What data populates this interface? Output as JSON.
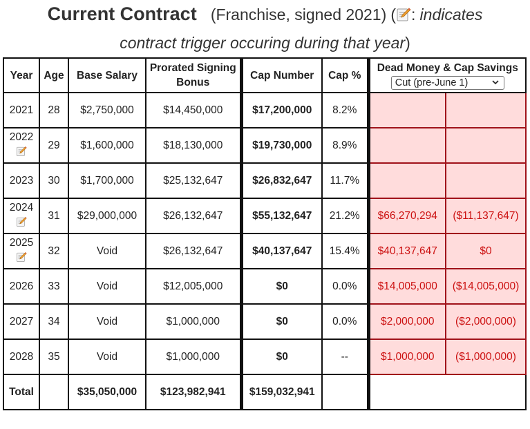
{
  "heading": {
    "title": "Current Contract",
    "subtitle": "(Franchise, signed 2021)",
    "note_open": "(",
    "note_colon": ":",
    "note_text": "indicates contract trigger occuring during that year",
    "note_close": ")"
  },
  "table": {
    "headers": {
      "year": "Year",
      "age": "Age",
      "base_salary": "Base Salary",
      "prorated_signing_bonus": "Prorated Signing Bonus",
      "cap_number": "Cap Number",
      "cap_pct": "Cap %",
      "dead_money": "Dead Money & Cap Savings"
    },
    "select": {
      "selected": "Cut (pre-June 1)"
    },
    "rows": [
      {
        "year": "2021",
        "trigger": false,
        "age": "28",
        "base": "$2,750,000",
        "bonus": "$14,450,000",
        "cap": "$17,200,000",
        "pct": "8.2%",
        "dead": "",
        "savings": ""
      },
      {
        "year": "2022",
        "trigger": true,
        "age": "29",
        "base": "$1,600,000",
        "bonus": "$18,130,000",
        "cap": "$19,730,000",
        "pct": "8.9%",
        "dead": "",
        "savings": ""
      },
      {
        "year": "2023",
        "trigger": false,
        "age": "30",
        "base": "$1,700,000",
        "bonus": "$25,132,647",
        "cap": "$26,832,647",
        "pct": "11.7%",
        "dead": "",
        "savings": ""
      },
      {
        "year": "2024",
        "trigger": true,
        "age": "31",
        "base": "$29,000,000",
        "bonus": "$26,132,647",
        "cap": "$55,132,647",
        "pct": "21.2%",
        "dead": "$66,270,294",
        "savings": "($11,137,647)"
      },
      {
        "year": "2025",
        "trigger": true,
        "age": "32",
        "base": "Void",
        "bonus": "$26,132,647",
        "cap": "$40,137,647",
        "pct": "15.4%",
        "dead": "$40,137,647",
        "savings": "$0"
      },
      {
        "year": "2026",
        "trigger": false,
        "age": "33",
        "base": "Void",
        "bonus": "$12,005,000",
        "cap": "$0",
        "pct": "0.0%",
        "dead": "$14,005,000",
        "savings": "($14,005,000)"
      },
      {
        "year": "2027",
        "trigger": false,
        "age": "34",
        "base": "Void",
        "bonus": "$1,000,000",
        "cap": "$0",
        "pct": "0.0%",
        "dead": "$2,000,000",
        "savings": "($2,000,000)"
      },
      {
        "year": "2028",
        "trigger": false,
        "age": "35",
        "base": "Void",
        "bonus": "$1,000,000",
        "cap": "$0",
        "pct": "--",
        "dead": "$1,000,000",
        "savings": "($1,000,000)"
      }
    ],
    "total": {
      "label": "Total",
      "base": "$35,050,000",
      "bonus": "$123,982,941",
      "cap": "$159,032,941"
    }
  },
  "colors": {
    "dead_fill": "#ffdcdc",
    "dead_border": "#a0121a",
    "dead_text": "#cc1111"
  },
  "icons": {
    "trigger": "memo-pencil-icon",
    "dropdown": "chevron-down-icon"
  }
}
